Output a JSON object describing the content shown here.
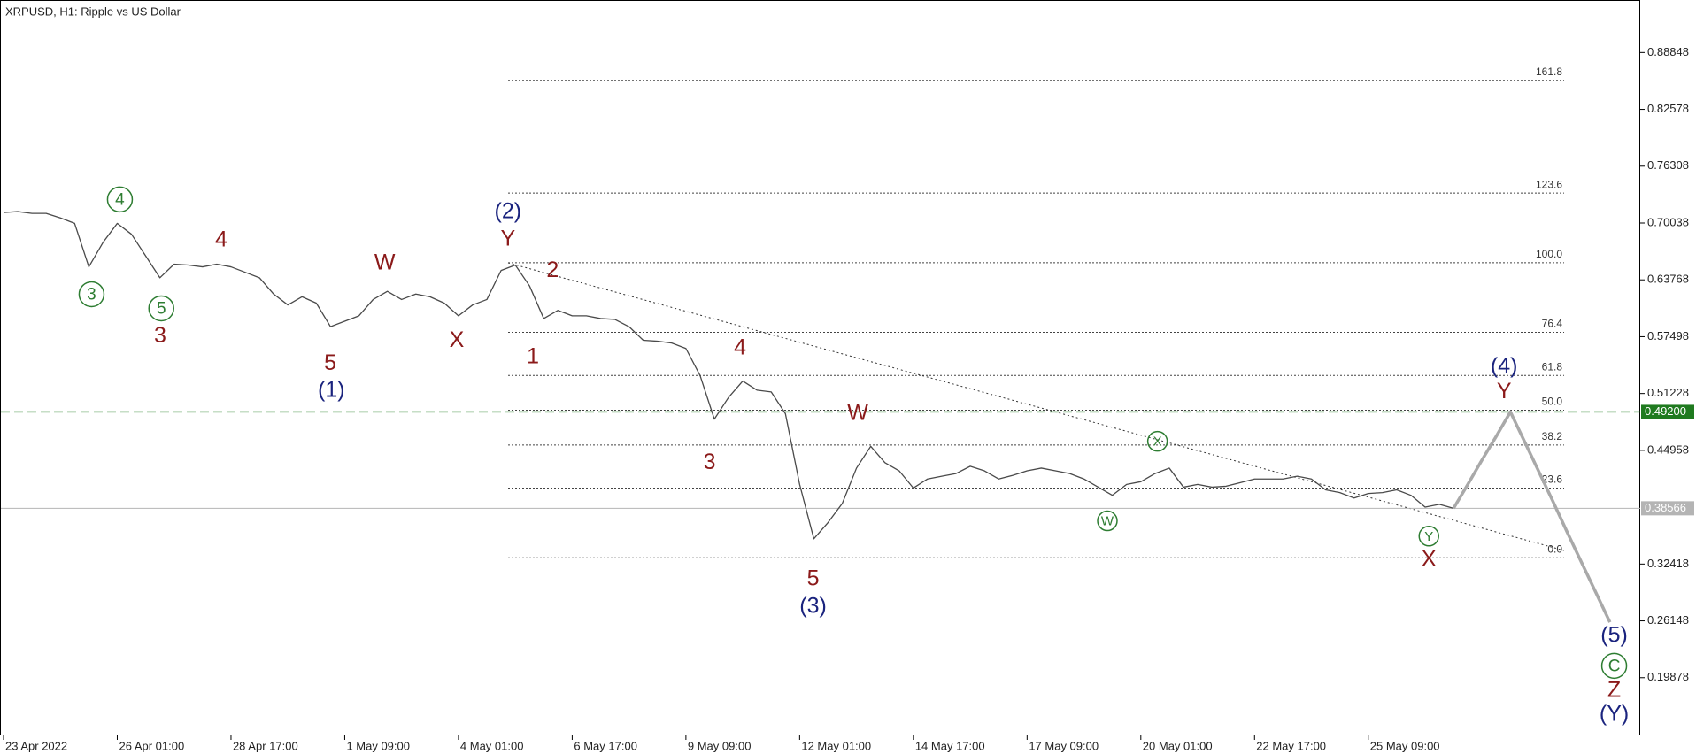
{
  "chart_data": {
    "type": "line",
    "title": "XRPUSD, H1:  Ripple vs US Dollar",
    "categories": [
      "23 Apr 2022",
      null,
      null,
      null,
      null,
      null,
      null,
      null,
      "26 Apr 01:00",
      null,
      null,
      null,
      null,
      null,
      null,
      null,
      "28 Apr 17:00",
      null,
      null,
      null,
      null,
      null,
      null,
      null,
      "1 May 09:00",
      null,
      null,
      null,
      null,
      null,
      null,
      null,
      "4 May 01:00",
      null,
      null,
      null,
      null,
      null,
      null,
      null,
      "6 May 17:00",
      null,
      null,
      null,
      null,
      null,
      null,
      null,
      "9 May 09:00",
      null,
      null,
      null,
      null,
      null,
      null,
      null,
      "12 May 01:00",
      null,
      null,
      null,
      null,
      null,
      null,
      null,
      "14 May 17:00",
      null,
      null,
      null,
      null,
      null,
      null,
      null,
      "17 May 09:00",
      null,
      null,
      null,
      null,
      null,
      null,
      null,
      "20 May 01:00",
      null,
      null,
      null,
      null,
      null,
      null,
      null,
      "22 May 17:00",
      null,
      null,
      null,
      null,
      null,
      null,
      null,
      "25 May 09:00",
      null,
      null,
      null,
      null,
      null,
      null,
      null,
      null,
      null,
      null,
      null,
      null,
      null,
      null,
      null,
      null,
      null
    ],
    "series": [
      {
        "color": "#4a4a4a",
        "width": 1.3,
        "values": [
          0.712,
          0.713,
          0.711,
          0.711,
          0.706,
          0.7,
          0.652,
          0.679,
          0.7,
          0.688,
          0.664,
          0.64,
          0.655,
          0.654,
          0.652,
          0.655,
          0.652,
          0.646,
          0.64,
          0.622,
          0.61,
          0.619,
          0.612,
          0.586,
          0.592,
          0.598,
          0.616,
          0.625,
          0.616,
          0.622,
          0.619,
          0.612,
          0.598,
          0.61,
          0.616,
          0.648,
          0.654,
          0.631,
          0.595,
          0.604,
          0.598,
          0.598,
          0.595,
          0.594,
          0.586,
          0.571,
          0.57,
          0.568,
          0.562,
          0.532,
          0.484,
          0.508,
          0.526,
          0.516,
          0.514,
          0.49,
          0.412,
          0.352,
          0.37,
          0.391,
          0.43,
          0.454,
          0.436,
          0.427,
          0.408,
          0.418,
          0.421,
          0.424,
          0.432,
          0.427,
          0.418,
          0.422,
          0.427,
          0.43,
          0.427,
          0.424,
          0.418,
          0.409,
          0.4,
          0.412,
          0.415,
          0.424,
          0.43,
          0.409,
          0.412,
          0.409,
          0.41,
          0.414,
          0.418,
          0.418,
          0.418,
          0.421,
          0.418,
          0.406,
          0.403,
          0.397,
          0.402,
          0.403,
          0.406,
          0.4,
          0.387,
          0.39,
          0.38566,
          null,
          null,
          null,
          null,
          null,
          null,
          null,
          null,
          null,
          null,
          null
        ]
      },
      {
        "color": "#a9a9a9",
        "width": 3.5,
        "values": [
          null,
          null,
          null,
          null,
          null,
          null,
          null,
          null,
          null,
          null,
          null,
          null,
          null,
          null,
          null,
          null,
          null,
          null,
          null,
          null,
          null,
          null,
          null,
          null,
          null,
          null,
          null,
          null,
          null,
          null,
          null,
          null,
          null,
          null,
          null,
          null,
          null,
          null,
          null,
          null,
          null,
          null,
          null,
          null,
          null,
          null,
          null,
          null,
          null,
          null,
          null,
          null,
          null,
          null,
          null,
          null,
          null,
          null,
          null,
          null,
          null,
          null,
          null,
          null,
          null,
          null,
          null,
          null,
          null,
          null,
          null,
          null,
          null,
          null,
          null,
          null,
          null,
          null,
          null,
          null,
          null,
          null,
          null,
          null,
          null,
          null,
          null,
          null,
          null,
          null,
          null,
          null,
          null,
          null,
          null,
          null,
          null,
          null,
          null,
          null,
          null,
          null,
          0.38566,
          0.412,
          0.439,
          0.465,
          0.492,
          0.459,
          0.426,
          0.393,
          0.359,
          0.326,
          0.293,
          0.26
        ]
      }
    ],
    "ylim": [
      0.1351,
      0.9425
    ],
    "yticks": [
      0.19878,
      0.26148,
      0.32418,
      0.44958,
      0.51228,
      0.57498,
      0.63768,
      0.70038,
      0.76308,
      0.82578,
      0.88848
    ],
    "price_lines": [
      {
        "value": 0.492,
        "label": "0.49200",
        "color": "#1f7a1f",
        "dashed": true
      },
      {
        "value": 0.38566,
        "label": "0.38566",
        "color": "#b4b4b4",
        "dashed": false
      }
    ],
    "fibonacci": {
      "low": 0.3311,
      "high": 0.6566,
      "levels": [
        {
          "value": 0,
          "label": "0.0"
        },
        23.6,
        38.2,
        {
          "value": 50,
          "label": "50.0"
        },
        61.8,
        76.4,
        {
          "value": 100,
          "label": "100.0"
        },
        123.6,
        161.8
      ]
    },
    "waves": [
      {
        "text": "(2)",
        "color": "#1a237e",
        "circled": false
      },
      {
        "text": "Y",
        "color": "#8b1a1a",
        "circled": false
      },
      {
        "text": "2",
        "color": "#8b1a1a",
        "circled": false
      },
      {
        "text": "1",
        "color": "#8b1a1a",
        "circled": false
      },
      {
        "text": "W",
        "color": "#8b1a1a",
        "circled": false
      },
      {
        "text": "X",
        "color": "#8b1a1a",
        "circled": false
      },
      {
        "text": "4",
        "color": "#8b1a1a",
        "circled": false
      },
      {
        "text": "3",
        "color": "#8b1a1a",
        "circled": false
      },
      {
        "text": "5",
        "color": "#8b1a1a",
        "circled": false
      },
      {
        "text": "(1)",
        "color": "#1a237e",
        "circled": false
      },
      {
        "text": "4",
        "color": "#2e7d32",
        "circled": true
      },
      {
        "text": "3",
        "color": "#2e7d32",
        "circled": true
      },
      {
        "text": "5",
        "color": "#2e7d32",
        "circled": true
      },
      {
        "text": "4",
        "color": "#8b1a1a",
        "circled": false
      },
      {
        "text": "3",
        "color": "#8b1a1a",
        "circled": false
      },
      {
        "text": "W",
        "color": "#8b1a1a",
        "circled": false
      },
      {
        "text": "5",
        "color": "#8b1a1a",
        "circled": false
      },
      {
        "text": "(3)",
        "color": "#1a237e",
        "circled": false
      },
      {
        "text": "X",
        "color": "#2e7d32",
        "circled": true
      },
      {
        "text": "W",
        "color": "#2e7d32",
        "circled": true
      },
      {
        "text": "Y",
        "color": "#2e7d32",
        "circled": true
      },
      {
        "text": "X",
        "color": "#8b1a1a",
        "circled": false
      },
      {
        "text": "(4)",
        "color": "#1a237e",
        "circled": false
      },
      {
        "text": "Y",
        "color": "#8b1a1a",
        "circled": false
      },
      {
        "text": "(5)",
        "color": "#1a237e",
        "circled": false
      },
      {
        "text": "C",
        "color": "#2e7d32",
        "circled": true
      },
      {
        "text": "Z",
        "color": "#8b1a1a",
        "circled": false
      },
      {
        "text": "(Y)",
        "color": "#1a237e",
        "circled": false
      }
    ]
  }
}
